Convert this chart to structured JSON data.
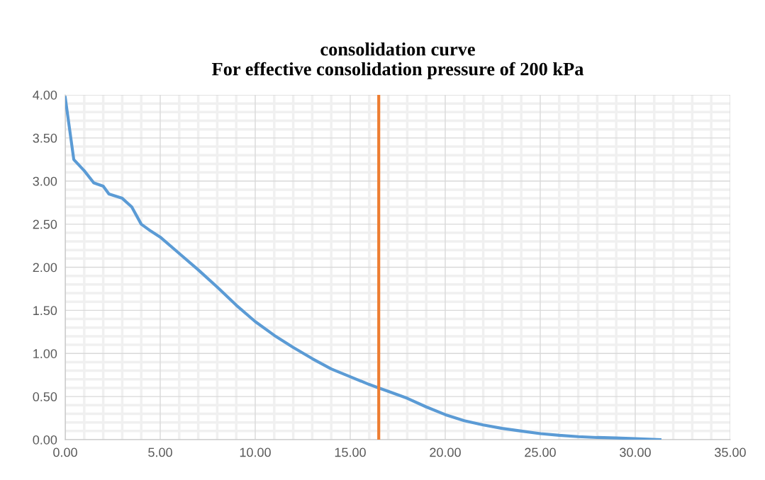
{
  "chart_data": {
    "type": "line",
    "title": "consolidation curve\nFor effective consolidation pressure of 200 kPa",
    "x": [
      0,
      0.45,
      1,
      1.5,
      2,
      2.3,
      3,
      3.5,
      4,
      4.5,
      5,
      6,
      7,
      8,
      9,
      10,
      11,
      12,
      13,
      14,
      15,
      16,
      16.5,
      17,
      18,
      19,
      20,
      21,
      22,
      23,
      24,
      25,
      26,
      27,
      28,
      29,
      30,
      31.3
    ],
    "series": [
      {
        "color": "#5b9bd5",
        "values": [
          3.97,
          3.25,
          3.12,
          2.98,
          2.94,
          2.85,
          2.8,
          2.7,
          2.5,
          2.42,
          2.35,
          2.16,
          1.97,
          1.77,
          1.56,
          1.37,
          1.21,
          1.07,
          0.94,
          0.82,
          0.73,
          0.64,
          0.6,
          0.56,
          0.48,
          0.38,
          0.29,
          0.22,
          0.17,
          0.13,
          0.1,
          0.07,
          0.05,
          0.035,
          0.025,
          0.02,
          0.012,
          0.0
        ]
      }
    ],
    "xlim": [
      0,
      35
    ],
    "xticks": [
      {
        "value": 0,
        "label": "0.00"
      },
      {
        "value": 5,
        "label": "5.00"
      },
      {
        "value": 10,
        "label": "10.00"
      },
      {
        "value": 15,
        "label": "15.00"
      },
      {
        "value": 20,
        "label": "20.00"
      },
      {
        "value": 25,
        "label": "25.00"
      },
      {
        "value": 30,
        "label": "30.00"
      },
      {
        "value": 35,
        "label": "35.00"
      }
    ],
    "ylim": [
      0,
      4
    ],
    "yticks": [
      {
        "value": 0,
        "label": "0.00"
      },
      {
        "value": 0.5,
        "label": "0.50"
      },
      {
        "value": 1,
        "label": "1.00"
      },
      {
        "value": 1.5,
        "label": "1.50"
      },
      {
        "value": 2,
        "label": "2.00"
      },
      {
        "value": 2.5,
        "label": "2.50"
      },
      {
        "value": 3,
        "label": "3.00"
      },
      {
        "value": 3.5,
        "label": "3.50"
      },
      {
        "value": 4,
        "label": "4.00"
      }
    ],
    "ref_lines": [
      {
        "axis": "x",
        "value": 16.5,
        "color": "#ed7d31"
      }
    ],
    "grid": true,
    "marker": "none",
    "line_style": "solid"
  }
}
